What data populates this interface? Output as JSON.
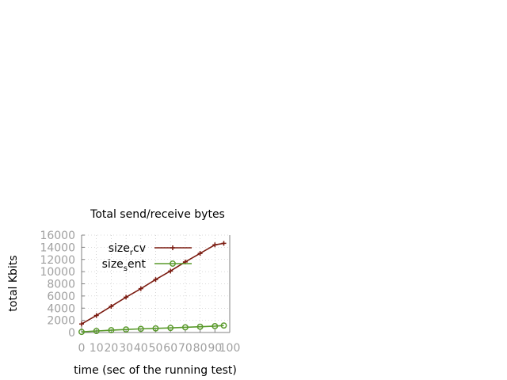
{
  "chart_data": {
    "type": "line",
    "title": "Total send/receive bytes",
    "xlabel": "time (sec of the running test)",
    "ylabel": "total Kbits",
    "xlim": [
      0,
      100
    ],
    "ylim": [
      0,
      16000
    ],
    "xticks": [
      0,
      10,
      20,
      30,
      40,
      50,
      60,
      70,
      80,
      90,
      100
    ],
    "yticks": [
      0,
      2000,
      4000,
      6000,
      8000,
      10000,
      12000,
      14000,
      16000
    ],
    "grid": true,
    "legend_position": "top-right",
    "series": [
      {
        "name_parts": [
          "size",
          "r",
          "cv"
        ],
        "color": "#7b1b10",
        "marker": "plus",
        "x": [
          0,
          10,
          20,
          30,
          40,
          50,
          60,
          70,
          80,
          90,
          96
        ],
        "y": [
          1400,
          2800,
          4300,
          5800,
          7200,
          8700,
          10100,
          11600,
          13000,
          14400,
          14650
        ]
      },
      {
        "name_parts": [
          "size",
          "s",
          "ent"
        ],
        "color": "#5a9a2c",
        "marker": "circle",
        "x": [
          0,
          10,
          20,
          30,
          40,
          50,
          60,
          70,
          80,
          90,
          96
        ],
        "y": [
          100,
          250,
          380,
          500,
          600,
          680,
          760,
          850,
          950,
          1050,
          1150
        ]
      }
    ]
  }
}
